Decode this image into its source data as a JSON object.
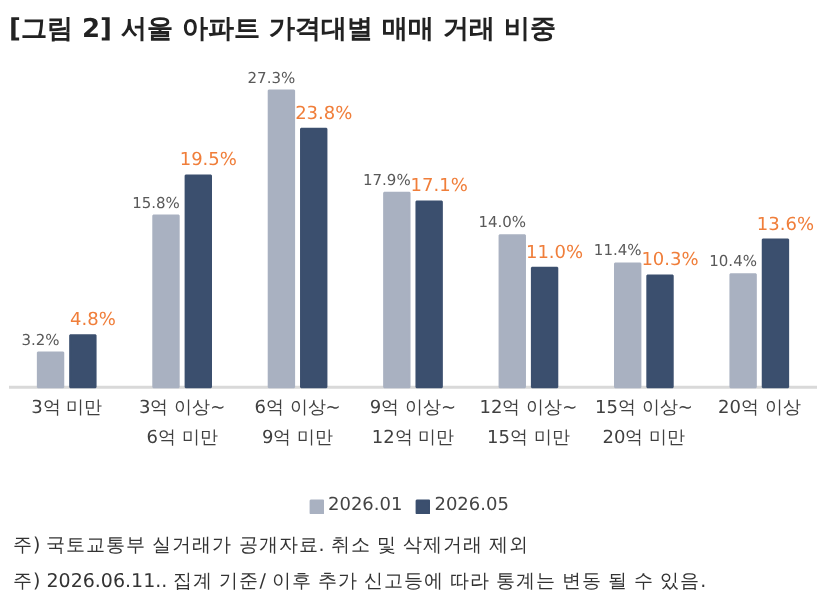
{
  "chart_data": {
    "type": "bar",
    "title": "[그림 2] 서울 아파트 가격대별 매매 거래 비중",
    "categories": [
      "3억 미만",
      "3억 이상~\n6억 미만",
      "6억 이상~\n9억 미만",
      "9억 이상~\n12억 미만",
      "12억 이상~\n15억 미만",
      "15억 이상~\n20억 미만",
      "20억 이상"
    ],
    "series": [
      {
        "name": "2026.01",
        "color": "#a9b1c1",
        "values": [
          3.2,
          15.8,
          27.3,
          17.9,
          14.0,
          11.4,
          10.4
        ],
        "value_labels": [
          "3.2%",
          "15.8%",
          "27.3%",
          "17.9%",
          "14.0%",
          "11.4%",
          "10.4%"
        ]
      },
      {
        "name": "2026.05",
        "color": "#3b4f6e",
        "values": [
          4.8,
          19.5,
          23.8,
          17.1,
          11.0,
          10.3,
          13.6
        ],
        "value_labels": [
          "4.8%",
          "19.5%",
          "23.8%",
          "17.1%",
          "11.0%",
          "10.3%",
          "13.6%"
        ]
      }
    ],
    "legend": "bottom",
    "annotations": [
      "주) 국토교통부 실거래가 공개자료. 취소 및 삭제거래 제외",
      "주) 2026.06.11.. 집계 기준/ 이후 추가 신고등에 따라 통계는 변동 될 수 있음."
    ]
  }
}
